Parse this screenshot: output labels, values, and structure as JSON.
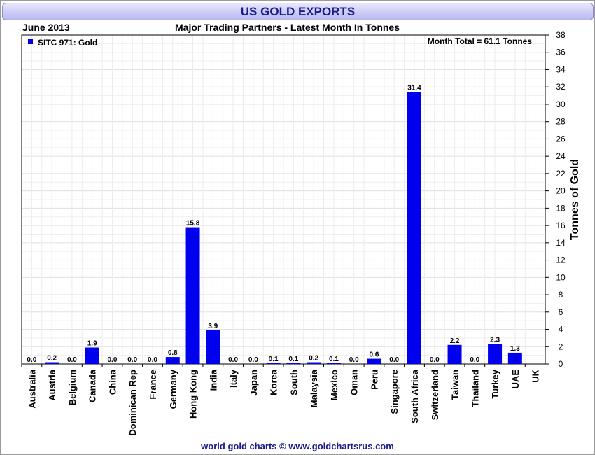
{
  "chart_data": {
    "type": "bar",
    "title": "US GOLD EXPORTS",
    "period": "June 2013",
    "subtitle": "Major Trading Partners - Latest Month In Tonnes",
    "legend": "SITC 971: Gold",
    "total_label": "Month Total = 61.1 Tonnes",
    "ylabel": "Tonnes of Gold",
    "xlabel": "",
    "ylim": [
      0,
      38
    ],
    "ytick_step": 2,
    "grid": true,
    "legend_placement": "top-left",
    "categories": [
      "Australia",
      "Austria",
      "Belgium",
      "Canada",
      "China",
      "Dominican Rep",
      "France",
      "Germany",
      "Hong Kong",
      "India",
      "Italy",
      "Japan",
      "Korea",
      "South",
      "Malaysia",
      "Mexico",
      "Oman",
      "Peru",
      "Singapore",
      "South Africa",
      "Switzerland",
      "Taiwan",
      "Thailand",
      "Turkey",
      "UAE",
      "UK"
    ],
    "values": [
      0.0,
      0.2,
      0.0,
      1.9,
      0.0,
      0.0,
      0.0,
      0.8,
      15.8,
      3.9,
      0.0,
      0.0,
      0.1,
      0.1,
      0.2,
      0.1,
      0.0,
      0.6,
      0.0,
      31.4,
      0.0,
      2.2,
      0.0,
      2.3,
      1.3,
      null
    ],
    "value_labels": [
      "0.0",
      "0.2",
      "0.0",
      "1.9",
      "0.0",
      "0.0",
      "0.0",
      "0.8",
      "15.8",
      "3.9",
      "0.0",
      "0.0",
      "0.1",
      "0.1",
      "0.2",
      "0.1",
      "0.0",
      "0.6",
      "0.0",
      "31.4",
      "0.0",
      "2.2",
      "0.0",
      "2.3",
      "1.3",
      ""
    ],
    "bar_color": "#0000ee",
    "footer": "world gold charts © www.goldchartsrus.com"
  }
}
